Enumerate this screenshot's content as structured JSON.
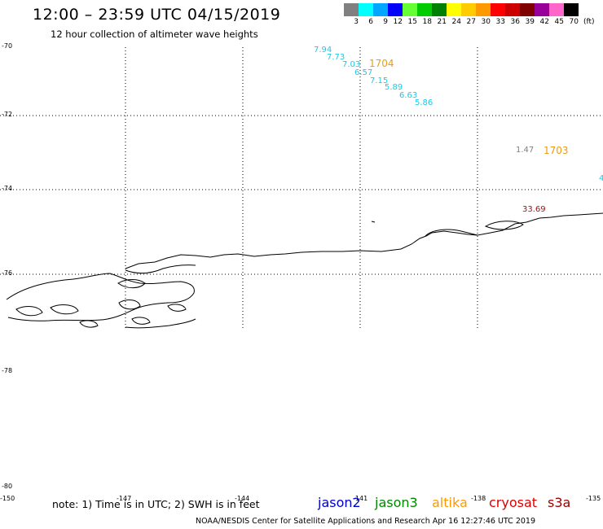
{
  "header": {
    "title": "12:00 – 23:59 UTC 04/15/2019",
    "subtitle": "12 hour collection of altimeter wave heights"
  },
  "color_scale": {
    "unit": "(ft)",
    "bins": [
      {
        "label": "3",
        "color": "#808080"
      },
      {
        "label": "6",
        "color": "#00ffff"
      },
      {
        "label": "9",
        "color": "#00a6ff"
      },
      {
        "label": "12",
        "color": "#0000ff"
      },
      {
        "label": "15",
        "color": "#66ff33"
      },
      {
        "label": "18",
        "color": "#00cc00"
      },
      {
        "label": "21",
        "color": "#008000"
      },
      {
        "label": "24",
        "color": "#ffff00"
      },
      {
        "label": "27",
        "color": "#ffcc00"
      },
      {
        "label": "30",
        "color": "#ff9900"
      },
      {
        "label": "33",
        "color": "#ff0000"
      },
      {
        "label": "36",
        "color": "#cc0000"
      },
      {
        "label": "39",
        "color": "#800000"
      },
      {
        "label": "42",
        "color": "#990099"
      },
      {
        "label": "45",
        "color": "#ff66cc"
      },
      {
        "label": "70",
        "color": "#000000"
      }
    ]
  },
  "latitude_labels": [
    "-70",
    "-72",
    "-74",
    "-76",
    "-78",
    "-80"
  ],
  "longitude_labels": [
    "-150",
    "-147",
    "-144",
    "-141",
    "-138",
    "-135"
  ],
  "observations": [
    {
      "value": "7.94",
      "color": "#1ec8e6"
    },
    {
      "value": "7.73",
      "color": "#1ec8e6"
    },
    {
      "value": "7.03",
      "color": "#1ec8e6"
    },
    {
      "value": "6.57",
      "color": "#1ec8e6"
    },
    {
      "value": "7.15",
      "color": "#1ec8e6"
    },
    {
      "value": "5.89",
      "color": "#1ec8e6"
    },
    {
      "value": "6.63",
      "color": "#1ec8e6"
    },
    {
      "value": "5.86",
      "color": "#1ec8e6"
    },
    {
      "value": "1.47",
      "color": "#808080"
    },
    {
      "value": "33.69",
      "color": "#9b1111"
    },
    {
      "value": "4",
      "color": "#1ec8e6"
    }
  ],
  "pass_times": [
    {
      "value": "1704",
      "color": "#f09a10"
    },
    {
      "value": "1703",
      "color": "#f09a10"
    }
  ],
  "footer": {
    "note": "note: 1) Time is in UTC; 2) SWH is in feet",
    "satellites": [
      {
        "name": "jason2",
        "color": "#0000cc"
      },
      {
        "name": "jason3",
        "color": "#008800"
      },
      {
        "name": "altika",
        "color": "#ff9900"
      },
      {
        "name": "cryosat",
        "color": "#dd0000"
      },
      {
        "name": "s3a",
        "color": "#990000"
      }
    ],
    "credit": "NOAA/NESDIS Center for Satellite Applications and Research   Apr 16 12:27:46 UTC 2019"
  }
}
